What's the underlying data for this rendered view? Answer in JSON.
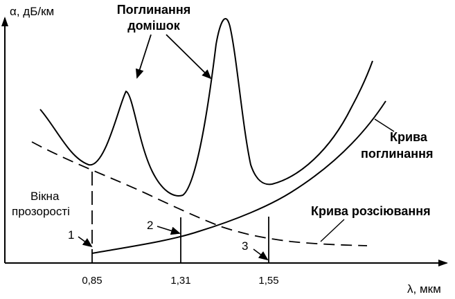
{
  "chart_data": {
    "type": "line",
    "xlabel": "λ, мкм",
    "ylabel": "α, дБ/км",
    "x_ticks": [
      "0,85",
      "1,31",
      "1,55"
    ],
    "x_tick_values": [
      0.85,
      1.31,
      1.55
    ],
    "series": [
      {
        "name": "Крива поглинання"
      },
      {
        "name": "Крива розсіювання"
      }
    ],
    "annotations": {
      "impurity_line1": "Поглинання",
      "impurity_line2": "домішок",
      "windows_line1": "Вікна",
      "windows_line2": "прозорості",
      "absorption_line1": "Крива",
      "absorption_line2": "поглинання",
      "scattering": "Крива розсіювання",
      "window_numbers": [
        "1",
        "2",
        "3"
      ]
    },
    "grid": false,
    "legend": "none"
  }
}
